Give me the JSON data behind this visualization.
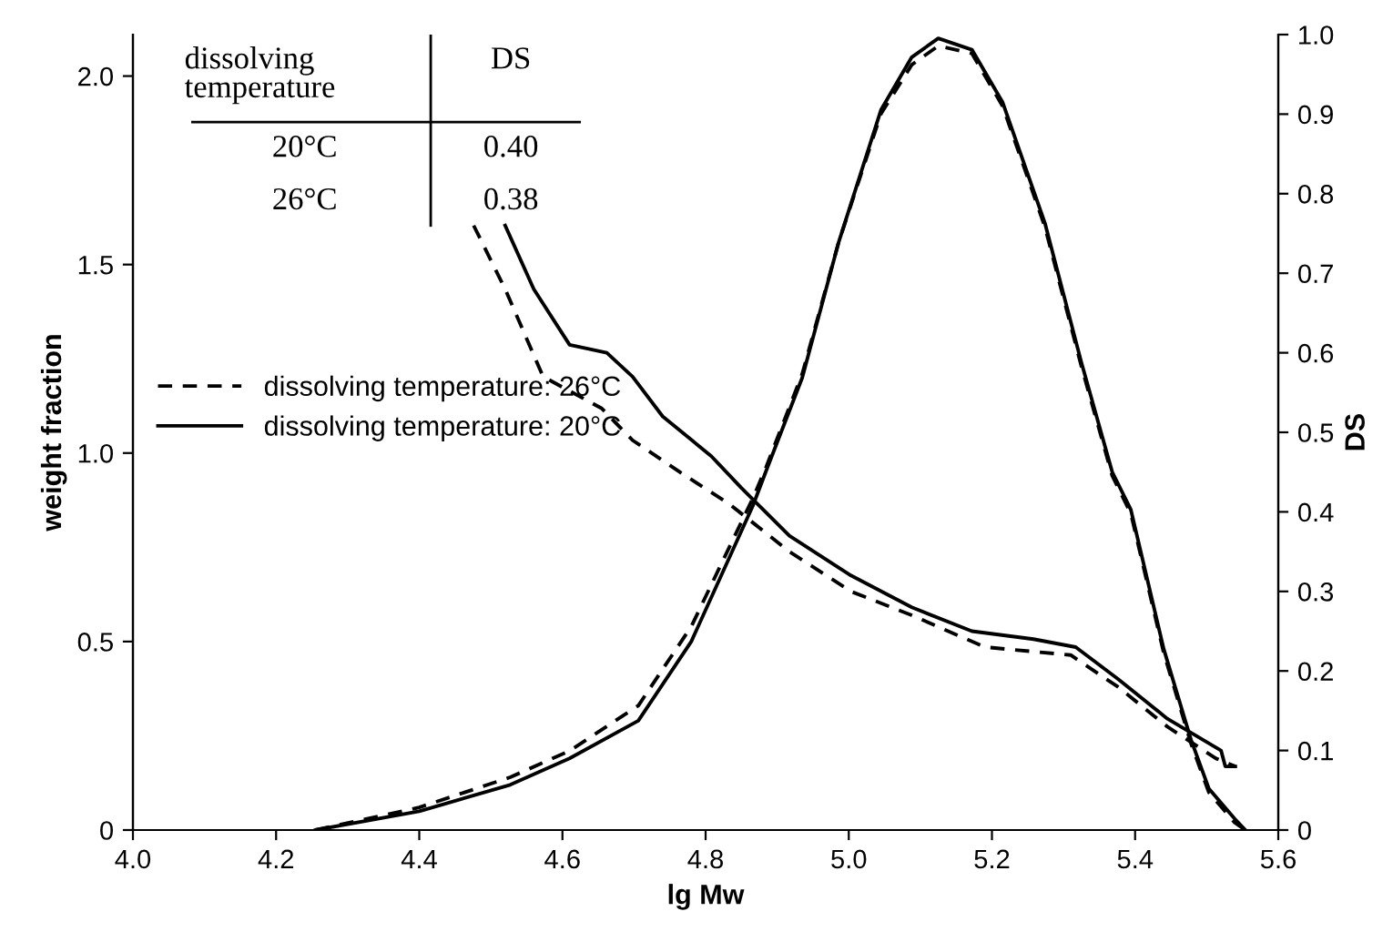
{
  "chart_data": {
    "type": "line",
    "xlabel": "lg Mw",
    "ylabel": "weight fraction",
    "y2label": "DS",
    "xlim": [
      4.0,
      5.6
    ],
    "xticks": [
      {
        "value": 4.0,
        "label": "4.0"
      },
      {
        "value": 4.2,
        "label": "4.2"
      },
      {
        "value": 4.4,
        "label": "4.4"
      },
      {
        "value": 4.6,
        "label": "4.6"
      },
      {
        "value": 4.8,
        "label": "4.8"
      },
      {
        "value": 5.0,
        "label": "5.0"
      },
      {
        "value": 5.2,
        "label": "5.2"
      },
      {
        "value": 5.4,
        "label": "5.4"
      },
      {
        "value": 5.6,
        "label": "5.6"
      }
    ],
    "ylim": [
      0,
      2.11
    ],
    "yticks": [
      0,
      0.5,
      {
        "value": 1.0,
        "label": "1.0"
      },
      1.5,
      {
        "value": 2.0,
        "label": "2.0"
      }
    ],
    "y2lim": [
      0,
      1.0
    ],
    "y2ticks": [
      0,
      0.1,
      0.2,
      0.3,
      0.4,
      0.5,
      0.6,
      0.7,
      0.8,
      0.9,
      {
        "value": 1.0,
        "label": "1.0"
      }
    ],
    "grid": false,
    "legend": "left",
    "marker": "none",
    "series": [
      {
        "name": "dissolving temperature: 26°C",
        "color": "#000000",
        "line_style": "dashed",
        "x": [
          4.255,
          4.4,
          4.527,
          4.61,
          4.706,
          4.78,
          4.866,
          4.884,
          4.935,
          4.986,
          5.045,
          5.088,
          5.125,
          5.172,
          5.215,
          5.274,
          5.325,
          5.368,
          5.394,
          5.44,
          5.478,
          5.503,
          5.539,
          5.554
        ],
        "values": [
          0,
          0.06,
          0.14,
          0.21,
          0.33,
          0.54,
          0.88,
          0.96,
          1.21,
          1.56,
          1.9,
          2.03,
          2.08,
          2.06,
          1.92,
          1.6,
          1.23,
          0.94,
          0.84,
          0.47,
          0.23,
          0.1,
          0.02,
          0
        ]
      },
      {
        "name": "dissolving temperature: 20°C",
        "color": "#000000",
        "line_style": "solid",
        "x": [
          4.255,
          4.4,
          4.527,
          4.61,
          4.706,
          4.78,
          4.866,
          4.884,
          4.935,
          4.986,
          5.045,
          5.088,
          5.125,
          5.172,
          5.215,
          5.274,
          5.325,
          5.368,
          5.394,
          5.44,
          5.478,
          5.503,
          5.539,
          5.554
        ],
        "values": [
          0,
          0.05,
          0.12,
          0.19,
          0.29,
          0.5,
          0.86,
          0.95,
          1.2,
          1.56,
          1.91,
          2.05,
          2.1,
          2.07,
          1.93,
          1.61,
          1.24,
          0.95,
          0.85,
          0.48,
          0.24,
          0.11,
          0.03,
          0
        ]
      },
      {
        "color": "#000000",
        "line_style": "dashed",
        "axis": "y2",
        "x": [
          4.476,
          4.52,
          4.573,
          4.655,
          4.698,
          4.764,
          4.833,
          4.917,
          5.003,
          5.088,
          5.19,
          5.31,
          5.376,
          5.445,
          5.513,
          5.54
        ],
        "values": [
          0.76,
          0.68,
          0.57,
          0.53,
          0.49,
          0.45,
          0.41,
          0.35,
          0.3,
          0.27,
          0.23,
          0.22,
          0.18,
          0.13,
          0.09,
          0.08
        ]
      },
      {
        "color": "#000000",
        "line_style": "solid",
        "axis": "y2",
        "x": [
          4.52,
          4.56,
          4.61,
          4.662,
          4.698,
          4.74,
          4.808,
          4.85,
          4.917,
          5.003,
          5.088,
          5.172,
          5.258,
          5.317,
          5.376,
          5.445,
          5.52,
          5.526,
          5.54
        ],
        "values": [
          0.76,
          0.68,
          0.61,
          0.6,
          0.57,
          0.52,
          0.47,
          0.43,
          0.37,
          0.32,
          0.28,
          0.25,
          0.24,
          0.23,
          0.19,
          0.14,
          0.1,
          0.08,
          0.08
        ]
      }
    ],
    "annotations": [
      "dissolving temperature",
      "DS",
      "20°C",
      "0.40",
      "26°C",
      "0.38"
    ]
  }
}
